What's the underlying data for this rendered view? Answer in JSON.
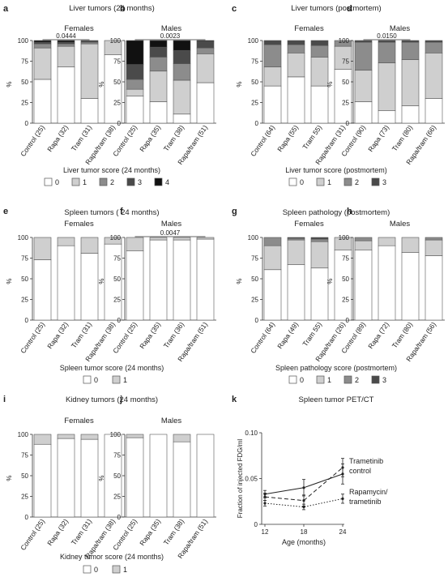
{
  "figure": {
    "panel_letters": [
      "a",
      "b",
      "c",
      "d",
      "e",
      "f",
      "g",
      "h",
      "i",
      "j",
      "k"
    ],
    "group_titles": {
      "liver_24": "Liver tumors (24 months)",
      "liver_pm": "Liver tumors (postmortem)",
      "spleen_24": "Spleen tumors ( 24 months)",
      "spleen_pm": "Spleen pathology (postmortem)",
      "kidney_24": "Kidney tumors (24 months)",
      "pet": "Spleen tumor PET/CT"
    },
    "legends": {
      "liver_24": {
        "title": "Liver tumor score (24 months)",
        "items": [
          "0",
          "1",
          "2",
          "3",
          "4"
        ]
      },
      "liver_pm": {
        "title": "Liver tumor score (postmortem)",
        "items": [
          "0",
          "1",
          "2",
          "3"
        ]
      },
      "spleen_24": {
        "title": "Spleen tumor score (24 months)",
        "items": [
          "0",
          "1"
        ]
      },
      "spleen_pm": {
        "title": "Spleen pathology score (postmortem)",
        "items": [
          "0",
          "1",
          "2",
          "3"
        ]
      },
      "kidney_24": {
        "title": "Kidney tumor score (24 months)",
        "items": [
          "0",
          "1"
        ]
      }
    }
  },
  "colors": {
    "score0": "#ffffff",
    "score1": "#cfcfcf",
    "score2": "#8c8c8c",
    "score3": "#4a4a4a",
    "score4": "#111111",
    "edge": "#555555",
    "axis": "#333333"
  },
  "chart_data": [
    {
      "id": "a",
      "type": "bar",
      "stacked": true,
      "title": "Females",
      "ylabel": "%",
      "ylim": [
        0,
        100
      ],
      "yticks": [
        0,
        25,
        50,
        75,
        100
      ],
      "categories": [
        "Control (25)",
        "Rapa (32)",
        "Tram (31)",
        "Rapa/tram (38)"
      ],
      "series": [
        {
          "name": "0",
          "values": [
            53,
            68,
            30,
            83
          ]
        },
        {
          "name": "1",
          "values": [
            38,
            25,
            66,
            17
          ]
        },
        {
          "name": "2",
          "values": [
            5,
            3,
            2,
            0
          ]
        },
        {
          "name": "3",
          "values": [
            2,
            2,
            2,
            0
          ]
        },
        {
          "name": "4",
          "values": [
            2,
            2,
            0,
            0
          ]
        }
      ],
      "annotation": {
        "text": "0.0444",
        "from": 0,
        "to": 2
      }
    },
    {
      "id": "b",
      "type": "bar",
      "stacked": true,
      "title": "Males",
      "ylabel": "%",
      "ylim": [
        0,
        100
      ],
      "yticks": [
        0,
        25,
        50,
        75,
        100
      ],
      "categories": [
        "Control (25)",
        "Rapa (35)",
        "Tram (38)",
        "Rapa/tram (51)"
      ],
      "series": [
        {
          "name": "0",
          "values": [
            33,
            26,
            11,
            49
          ]
        },
        {
          "name": "1",
          "values": [
            8,
            37,
            41,
            35
          ]
        },
        {
          "name": "2",
          "values": [
            12,
            17,
            20,
            7
          ]
        },
        {
          "name": "3",
          "values": [
            18,
            12,
            16,
            8
          ]
        },
        {
          "name": "4",
          "values": [
            29,
            8,
            12,
            1
          ]
        }
      ],
      "annotation": {
        "text": "0.0023",
        "from": 0,
        "to": 3
      }
    },
    {
      "id": "c",
      "type": "bar",
      "stacked": true,
      "title": "Females",
      "ylabel": "%",
      "ylim": [
        0,
        100
      ],
      "yticks": [
        0,
        25,
        50,
        75,
        100
      ],
      "categories": [
        "Control (64)",
        "Rapa (55)",
        "Tram 55)",
        "Rapa/tram (31)"
      ],
      "series": [
        {
          "name": "0",
          "values": [
            45,
            56,
            45,
            65
          ]
        },
        {
          "name": "1",
          "values": [
            23,
            29,
            35,
            28
          ]
        },
        {
          "name": "2",
          "values": [
            27,
            10,
            14,
            7
          ]
        },
        {
          "name": "3",
          "values": [
            5,
            5,
            6,
            0
          ]
        }
      ]
    },
    {
      "id": "d",
      "type": "bar",
      "stacked": true,
      "title": "Males",
      "ylabel": "%",
      "ylim": [
        0,
        100
      ],
      "yticks": [
        0,
        25,
        50,
        75,
        100
      ],
      "categories": [
        "Control (90)",
        "Rapa (73)",
        "Tram (80)",
        "Rapa/tram (66)"
      ],
      "series": [
        {
          "name": "0",
          "values": [
            26,
            15,
            21,
            30
          ]
        },
        {
          "name": "1",
          "values": [
            38,
            58,
            56,
            55
          ]
        },
        {
          "name": "2",
          "values": [
            34,
            25,
            21,
            13
          ]
        },
        {
          "name": "3",
          "values": [
            2,
            2,
            2,
            2
          ]
        }
      ],
      "annotation": {
        "text": "0.0150",
        "from": 0,
        "to": 2
      }
    },
    {
      "id": "e",
      "type": "bar",
      "stacked": true,
      "title": "Females",
      "ylabel": "%",
      "ylim": [
        0,
        100
      ],
      "yticks": [
        0,
        25,
        50,
        75,
        100
      ],
      "categories": [
        "Control (25)",
        "Rapa (32)",
        "Tram (31)",
        "Rapa/tram (38)"
      ],
      "series": [
        {
          "name": "0",
          "values": [
            73,
            90,
            81,
            92
          ]
        },
        {
          "name": "1",
          "values": [
            27,
            10,
            19,
            8
          ]
        }
      ]
    },
    {
      "id": "f",
      "type": "bar",
      "stacked": true,
      "title": "Males",
      "ylabel": "%",
      "ylim": [
        0,
        100
      ],
      "yticks": [
        0,
        25,
        50,
        75,
        100
      ],
      "categories": [
        "Control (25)",
        "Rapa (35)",
        "Tram (36)",
        "Rapa/tram (51)"
      ],
      "series": [
        {
          "name": "0",
          "values": [
            84,
            97,
            97,
            98
          ]
        },
        {
          "name": "1",
          "values": [
            16,
            3,
            3,
            2
          ]
        }
      ],
      "annotation": {
        "text": "0.0047",
        "from": 0,
        "to": 3
      }
    },
    {
      "id": "g",
      "type": "bar",
      "stacked": true,
      "title": "Females",
      "ylabel": "%",
      "ylim": [
        0,
        100
      ],
      "yticks": [
        0,
        25,
        50,
        75,
        100
      ],
      "categories": [
        "Control (64)",
        "Rapa (49)",
        "Tram 55)",
        "Rapa/tram (26)"
      ],
      "series": [
        {
          "name": "0",
          "values": [
            61,
            67,
            63,
            85
          ]
        },
        {
          "name": "1",
          "values": [
            29,
            30,
            32,
            15
          ]
        },
        {
          "name": "2",
          "values": [
            10,
            2,
            3,
            0
          ]
        },
        {
          "name": "3",
          "values": [
            0,
            1,
            2,
            0
          ]
        }
      ]
    },
    {
      "id": "h",
      "type": "bar",
      "stacked": true,
      "title": "Males",
      "ylabel": "%",
      "ylim": [
        0,
        100
      ],
      "yticks": [
        0,
        25,
        50,
        75,
        100
      ],
      "categories": [
        "Control (89)",
        "Rapa (72)",
        "Tram (80)",
        "Rapa/tram (56)"
      ],
      "series": [
        {
          "name": "0",
          "values": [
            85,
            90,
            82,
            78
          ]
        },
        {
          "name": "1",
          "values": [
            11,
            10,
            18,
            19
          ]
        },
        {
          "name": "2",
          "values": [
            4,
            0,
            0,
            3
          ]
        }
      ]
    },
    {
      "id": "i",
      "type": "bar",
      "stacked": true,
      "title": "Females",
      "ylabel": "%",
      "ylim": [
        0,
        100
      ],
      "yticks": [
        0,
        25,
        50,
        75,
        100
      ],
      "categories": [
        "Control (25)",
        "Rapa (32)",
        "Tram (31)",
        "Rapa/tram (38)"
      ],
      "series": [
        {
          "name": "0",
          "values": [
            88,
            95,
            94,
            100
          ]
        },
        {
          "name": "1",
          "values": [
            12,
            5,
            6,
            0
          ]
        }
      ]
    },
    {
      "id": "j",
      "type": "bar",
      "stacked": true,
      "title": "Males",
      "ylabel": "%",
      "ylim": [
        0,
        100
      ],
      "yticks": [
        0,
        25,
        50,
        75,
        100
      ],
      "categories": [
        "Control (25)",
        "Rapa (35)",
        "Tram (38)",
        "Rapa/tram (51)"
      ],
      "series": [
        {
          "name": "0",
          "values": [
            96,
            100,
            91,
            100
          ]
        },
        {
          "name": "1",
          "values": [
            4,
            0,
            9,
            0
          ]
        }
      ]
    },
    {
      "id": "k",
      "type": "line",
      "xlabel": "Age (months)",
      "ylabel": "Fraction of injected FDG/ml",
      "x": [
        12,
        18,
        24
      ],
      "xticks": [
        12,
        18,
        24
      ],
      "ylim": [
        0,
        0.1
      ],
      "yticks": [
        0,
        0.05,
        0.1
      ],
      "ytick_labels": [
        "0",
        "0.05",
        "0.10"
      ],
      "series": [
        {
          "name": "Trametinib",
          "style": "dashed",
          "values": [
            0.03,
            0.026,
            0.062
          ],
          "err": [
            0.004,
            0.006,
            0.01
          ]
        },
        {
          "name": "control",
          "style": "solid",
          "values": [
            0.033,
            0.04,
            0.055
          ],
          "err": [
            0.004,
            0.009,
            0.011
          ]
        },
        {
          "name": "Rapamycin/ trametinib",
          "style": "dotted",
          "values": [
            0.023,
            0.019,
            0.028
          ],
          "err": [
            0.003,
            0.003,
            0.005
          ]
        }
      ],
      "labels": [
        "Trametinib",
        "control",
        "Rapamycin/",
        "trametinib"
      ]
    }
  ]
}
